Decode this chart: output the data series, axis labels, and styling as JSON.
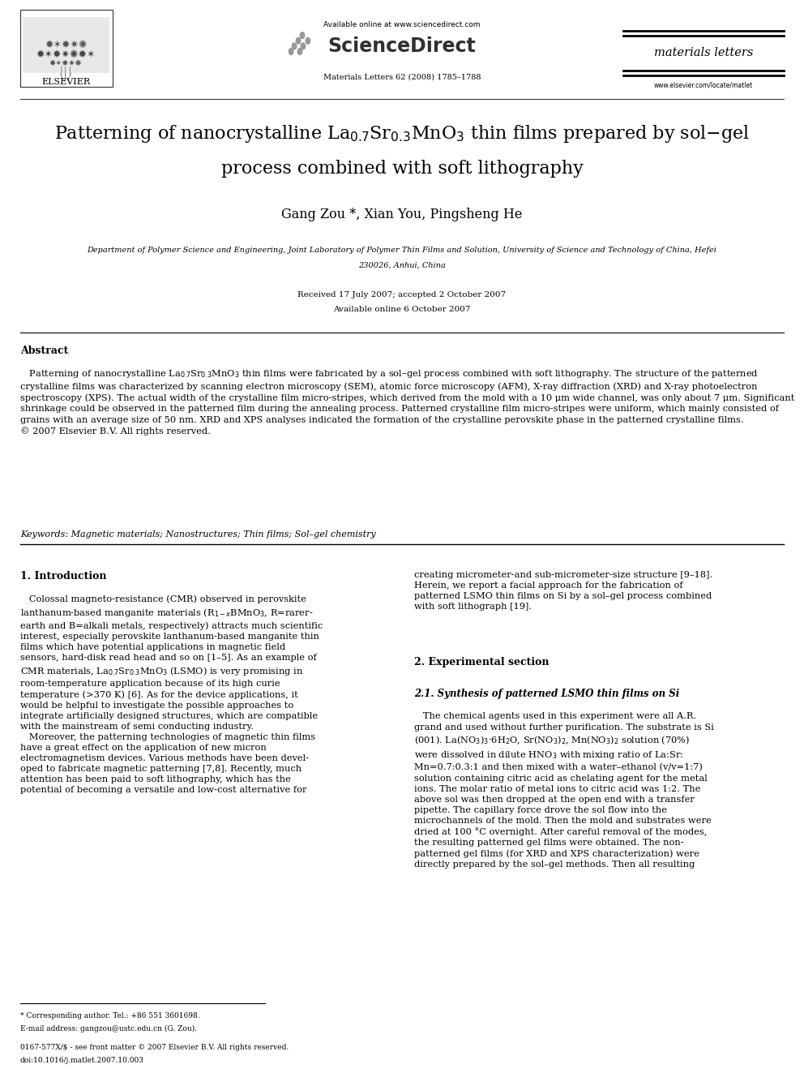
{
  "bg_color": "#ffffff",
  "page_width": 9.92,
  "page_height": 13.23,
  "header": {
    "elsevier_text": "ELSEVIER",
    "available_online": "Available online at www.sciencedirect.com",
    "sciencedirect": "ScienceDirect",
    "journal": "materials letters",
    "journal_info": "Materials Letters 62 (2008) 1785–1788",
    "website": "www.elsevier.com/locate/matlet"
  },
  "authors": "Gang Zou *, Xian You, Pingsheng He",
  "received": "Received 17 July 2007; accepted 2 October 2007",
  "available": "Available online 6 October 2007",
  "abstract_title": "Abstract",
  "keywords": "Keywords: Magnetic materials; Nanostructures; Thin films; Sol–gel chemistry",
  "footnote1": "* Corresponding author. Tel.: +86 551 3601698.",
  "footnote2": "E-mail address: gangzou@ustc.edu.cn (G. Zou).",
  "footnote3": "0167-577X/$ - see front matter © 2007 Elsevier B.V. All rights reserved.",
  "footnote4": "doi:10.1016/j.matlet.2007.10.003"
}
